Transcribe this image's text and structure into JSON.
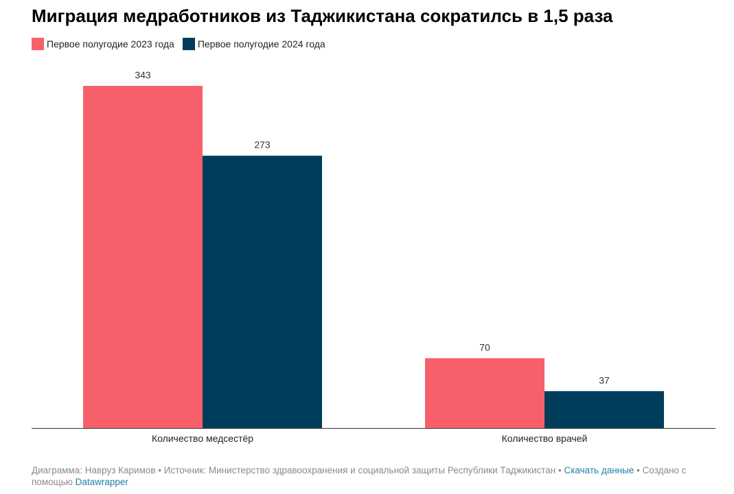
{
  "title": "Миграция медработников из Таджикистана сократилсь в 1,5 раза",
  "colors": {
    "series_2023": "#f7606b",
    "series_2024": "#003d5b",
    "axis": "#333333"
  },
  "chart_data": {
    "type": "bar",
    "title": "Миграция медработников из Таджикистана сократилсь в 1,5 раза",
    "categories": [
      "Количество медсестёр",
      "Количество врачей"
    ],
    "series": [
      {
        "name": "Первое полугодие 2023 года",
        "values": [
          343,
          70
        ]
      },
      {
        "name": "Первое полугодие 2024 года",
        "values": [
          273,
          37
        ]
      }
    ],
    "xlabel": "",
    "ylabel": "",
    "ylim": [
      0,
      343
    ],
    "grid": false,
    "legend": "top-left"
  },
  "footer": {
    "author": "Диаграмма: Навруз Каримов",
    "sep1": " • ",
    "source": "Источник: Министерство здравоохранения и социальной защиты Республики Таджикистан",
    "sep2": " • ",
    "download": "Скачать данные",
    "sep3": " • ",
    "created": "Создано с помощью ",
    "tool": "Datawrapper"
  }
}
